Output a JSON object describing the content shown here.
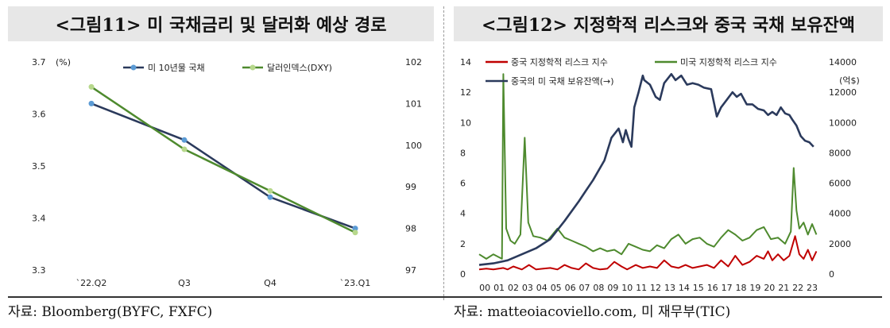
{
  "figure_left": {
    "title": "<그림11> 미 국채금리 및 달러화 예상 경로",
    "source": "자료: Bloomberg(BYFC, FXFC)"
  },
  "figure_right": {
    "title": "<그림12> 지정학적 리스크와 중국 국채 보유잔액",
    "source": "자료: matteoiacoviello.com, 미 재무부(TIC)"
  },
  "chart_data": [
    {
      "type": "line",
      "categories": [
        "`22.Q2",
        "Q3",
        "Q4",
        "`23.Q1"
      ],
      "yleft": {
        "unit": "(%)",
        "min": 3.3,
        "max": 3.7,
        "ticks": [
          "3.3",
          "3.4",
          "3.5",
          "3.6",
          "3.7"
        ]
      },
      "yright": {
        "min": 97,
        "max": 102,
        "ticks": [
          "97",
          "98",
          "99",
          "100",
          "101",
          "102"
        ]
      },
      "legend_position": "top-center",
      "series": [
        {
          "name": "미 10년물 국채",
          "axis": "left",
          "color": "#2b3a5c",
          "marker": "#5b9bd5",
          "values": [
            3.62,
            3.55,
            3.44,
            3.38
          ]
        },
        {
          "name": "달러인덱스(DXY)",
          "axis": "right",
          "color": "#4e8a2e",
          "marker": "#b7d88c",
          "values": [
            101.4,
            99.9,
            98.9,
            97.9
          ]
        }
      ]
    },
    {
      "type": "line",
      "x_ticks": [
        "00",
        "01",
        "02",
        "03",
        "04",
        "05",
        "06",
        "07",
        "08",
        "09",
        "10",
        "11",
        "12",
        "13",
        "14",
        "15",
        "16",
        "17",
        "18",
        "19",
        "20",
        "21",
        "22",
        "23"
      ],
      "x_range": [
        2000,
        2023.9
      ],
      "yleft": {
        "min": 0,
        "max": 14,
        "ticks": [
          "0",
          "2",
          "4",
          "6",
          "8",
          "10",
          "12",
          "14"
        ]
      },
      "yright": {
        "unit": "(억$)",
        "min": 0,
        "max": 14000,
        "ticks": [
          "0",
          "2000",
          "4000",
          "6000",
          "8000",
          "10000",
          "12000",
          "14000"
        ]
      },
      "legend_position": "top-left",
      "series": [
        {
          "name": "중국 지정학적 리스크 지수",
          "axis": "left",
          "color": "#c00000",
          "points": [
            [
              2000,
              0.3
            ],
            [
              2000.5,
              0.35
            ],
            [
              2001,
              0.3
            ],
            [
              2001.7,
              0.4
            ],
            [
              2002,
              0.3
            ],
            [
              2002.4,
              0.5
            ],
            [
              2003,
              0.3
            ],
            [
              2003.5,
              0.6
            ],
            [
              2004,
              0.3
            ],
            [
              2004.5,
              0.35
            ],
            [
              2005,
              0.4
            ],
            [
              2005.5,
              0.3
            ],
            [
              2006,
              0.6
            ],
            [
              2006.5,
              0.4
            ],
            [
              2007,
              0.3
            ],
            [
              2007.5,
              0.7
            ],
            [
              2008,
              0.4
            ],
            [
              2008.5,
              0.3
            ],
            [
              2009,
              0.35
            ],
            [
              2009.5,
              0.8
            ],
            [
              2010,
              0.5
            ],
            [
              2010.4,
              0.3
            ],
            [
              2011,
              0.6
            ],
            [
              2011.5,
              0.4
            ],
            [
              2012,
              0.5
            ],
            [
              2012.5,
              0.4
            ],
            [
              2013,
              0.9
            ],
            [
              2013.5,
              0.5
            ],
            [
              2014,
              0.4
            ],
            [
              2014.5,
              0.6
            ],
            [
              2015,
              0.4
            ],
            [
              2015.5,
              0.5
            ],
            [
              2016,
              0.6
            ],
            [
              2016.5,
              0.4
            ],
            [
              2017,
              0.9
            ],
            [
              2017.5,
              0.5
            ],
            [
              2018,
              1.2
            ],
            [
              2018.5,
              0.6
            ],
            [
              2019,
              0.8
            ],
            [
              2019.5,
              1.2
            ],
            [
              2020,
              1.0
            ],
            [
              2020.3,
              1.5
            ],
            [
              2020.6,
              0.9
            ],
            [
              2021,
              1.3
            ],
            [
              2021.4,
              0.9
            ],
            [
              2021.8,
              1.2
            ],
            [
              2022.2,
              2.5
            ],
            [
              2022.5,
              1.3
            ],
            [
              2022.8,
              1.0
            ],
            [
              2023.1,
              1.6
            ],
            [
              2023.4,
              0.9
            ],
            [
              2023.7,
              1.5
            ]
          ]
        },
        {
          "name": "미국 지정학적 리스크 지수",
          "axis": "left",
          "color": "#4e8a2e",
          "points": [
            [
              2000,
              1.3
            ],
            [
              2000.5,
              1.0
            ],
            [
              2001,
              1.3
            ],
            [
              2001.6,
              1.0
            ],
            [
              2001.7,
              13.2
            ],
            [
              2001.9,
              3.0
            ],
            [
              2002.2,
              2.2
            ],
            [
              2002.5,
              2.0
            ],
            [
              2002.9,
              2.6
            ],
            [
              2003.2,
              9.0
            ],
            [
              2003.45,
              3.4
            ],
            [
              2003.8,
              2.5
            ],
            [
              2004.3,
              2.4
            ],
            [
              2004.8,
              2.2
            ],
            [
              2005.5,
              3.0
            ],
            [
              2006,
              2.4
            ],
            [
              2006.5,
              2.2
            ],
            [
              2007,
              2.0
            ],
            [
              2007.5,
              1.8
            ],
            [
              2008,
              1.5
            ],
            [
              2008.5,
              1.7
            ],
            [
              2009,
              1.5
            ],
            [
              2009.5,
              1.6
            ],
            [
              2010,
              1.3
            ],
            [
              2010.5,
              2.0
            ],
            [
              2011,
              1.8
            ],
            [
              2011.5,
              1.6
            ],
            [
              2012,
              1.5
            ],
            [
              2012.5,
              1.9
            ],
            [
              2013,
              1.7
            ],
            [
              2013.5,
              2.3
            ],
            [
              2014,
              2.6
            ],
            [
              2014.5,
              2.0
            ],
            [
              2015,
              2.3
            ],
            [
              2015.5,
              2.4
            ],
            [
              2016,
              2.0
            ],
            [
              2016.5,
              1.8
            ],
            [
              2017,
              2.4
            ],
            [
              2017.5,
              2.9
            ],
            [
              2018,
              2.6
            ],
            [
              2018.5,
              2.2
            ],
            [
              2019,
              2.4
            ],
            [
              2019.5,
              2.9
            ],
            [
              2020,
              3.1
            ],
            [
              2020.5,
              2.3
            ],
            [
              2021,
              2.4
            ],
            [
              2021.5,
              2.0
            ],
            [
              2021.9,
              2.8
            ],
            [
              2022.1,
              7.0
            ],
            [
              2022.3,
              4.2
            ],
            [
              2022.5,
              3.0
            ],
            [
              2022.8,
              3.4
            ],
            [
              2023.1,
              2.6
            ],
            [
              2023.4,
              3.3
            ],
            [
              2023.7,
              2.6
            ]
          ]
        },
        {
          "name": "중국의 미 국채 보유잔액(→)",
          "axis": "right",
          "color": "#2b3a5c",
          "points": [
            [
              2000,
              600
            ],
            [
              2001,
              700
            ],
            [
              2002,
              900
            ],
            [
              2003,
              1300
            ],
            [
              2004,
              1700
            ],
            [
              2005,
              2300
            ],
            [
              2006,
              3500
            ],
            [
              2007,
              4800
            ],
            [
              2007.5,
              5500
            ],
            [
              2008,
              6200
            ],
            [
              2008.8,
              7500
            ],
            [
              2009.3,
              9000
            ],
            [
              2009.8,
              9600
            ],
            [
              2010.1,
              8700
            ],
            [
              2010.3,
              9500
            ],
            [
              2010.5,
              8900
            ],
            [
              2010.7,
              8400
            ],
            [
              2010.9,
              11000
            ],
            [
              2011.2,
              12000
            ],
            [
              2011.5,
              13100
            ],
            [
              2011.6,
              12800
            ],
            [
              2012,
              12500
            ],
            [
              2012.4,
              11700
            ],
            [
              2012.7,
              11500
            ],
            [
              2013,
              12600
            ],
            [
              2013.5,
              13200
            ],
            [
              2013.8,
              12800
            ],
            [
              2014.2,
              13100
            ],
            [
              2014.6,
              12500
            ],
            [
              2015,
              12600
            ],
            [
              2015.4,
              12500
            ],
            [
              2015.8,
              12300
            ],
            [
              2016.3,
              12200
            ],
            [
              2016.7,
              10400
            ],
            [
              2017,
              11000
            ],
            [
              2017.4,
              11500
            ],
            [
              2017.8,
              12000
            ],
            [
              2018.1,
              11700
            ],
            [
              2018.4,
              11900
            ],
            [
              2018.8,
              11200
            ],
            [
              2019.2,
              11200
            ],
            [
              2019.6,
              10900
            ],
            [
              2020,
              10800
            ],
            [
              2020.3,
              10500
            ],
            [
              2020.6,
              10700
            ],
            [
              2020.9,
              10500
            ],
            [
              2021.2,
              11000
            ],
            [
              2021.5,
              10600
            ],
            [
              2021.8,
              10500
            ],
            [
              2022.0,
              10200
            ],
            [
              2022.3,
              9800
            ],
            [
              2022.6,
              9100
            ],
            [
              2022.9,
              8800
            ],
            [
              2023.2,
              8700
            ],
            [
              2023.5,
              8400
            ]
          ]
        }
      ]
    }
  ]
}
